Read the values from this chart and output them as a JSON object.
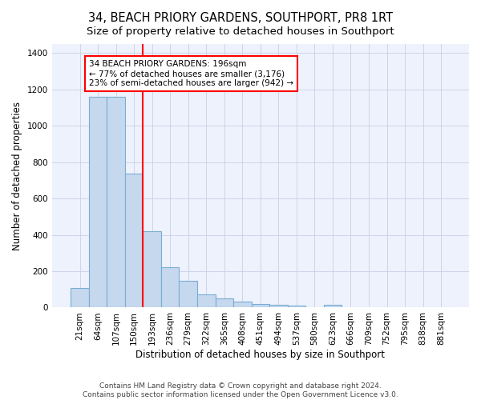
{
  "title": "34, BEACH PRIORY GARDENS, SOUTHPORT, PR8 1RT",
  "subtitle": "Size of property relative to detached houses in Southport",
  "xlabel": "Distribution of detached houses by size in Southport",
  "ylabel": "Number of detached properties",
  "bar_labels": [
    "21sqm",
    "64sqm",
    "107sqm",
    "150sqm",
    "193sqm",
    "236sqm",
    "279sqm",
    "322sqm",
    "365sqm",
    "408sqm",
    "451sqm",
    "494sqm",
    "537sqm",
    "580sqm",
    "623sqm",
    "666sqm",
    "709sqm",
    "752sqm",
    "795sqm",
    "838sqm",
    "881sqm"
  ],
  "bar_values": [
    107,
    1160,
    1160,
    735,
    420,
    220,
    148,
    72,
    50,
    33,
    20,
    15,
    12,
    0,
    15,
    0,
    0,
    0,
    0,
    0,
    0
  ],
  "bar_color": "#c5d8ee",
  "bar_edge_color": "#7aadd4",
  "vline_x": 4,
  "vline_color": "red",
  "annotation_text": "34 BEACH PRIORY GARDENS: 196sqm\n← 77% of detached houses are smaller (3,176)\n23% of semi-detached houses are larger (942) →",
  "ylim": [
    0,
    1450
  ],
  "yticks": [
    0,
    200,
    400,
    600,
    800,
    1000,
    1200,
    1400
  ],
  "footer_line1": "Contains HM Land Registry data © Crown copyright and database right 2024.",
  "footer_line2": "Contains public sector information licensed under the Open Government Licence v3.0.",
  "background_color": "#eef2fc",
  "grid_color": "#c8cfe8",
  "title_fontsize": 10.5,
  "subtitle_fontsize": 9.5,
  "axis_label_fontsize": 8.5,
  "tick_fontsize": 7.5,
  "footer_fontsize": 6.5
}
